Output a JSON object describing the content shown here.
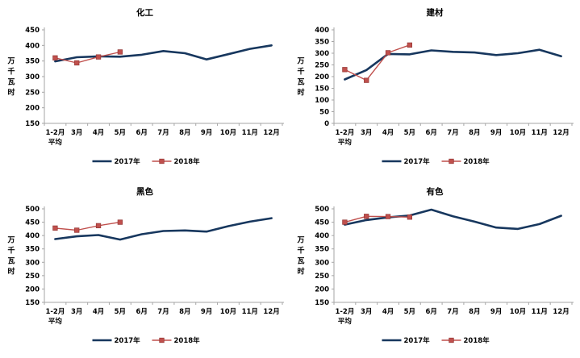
{
  "page": {
    "background": "#FFFFFF"
  },
  "colors": {
    "series_2017": "#17375E",
    "series_2018": "#C0504D",
    "marker_border": "#943634",
    "axis": "#A6A6A6",
    "text": "#000000"
  },
  "legend": {
    "position": "bottom",
    "items": [
      {
        "label": "2017年",
        "color": "#17375E",
        "marker": "line"
      },
      {
        "label": "2018年",
        "color": "#C0504D",
        "marker": "square"
      }
    ]
  },
  "chart_data": [
    {
      "type": "line",
      "title": "化工",
      "ylabel": "万千瓦时",
      "xlabel": "",
      "grid": false,
      "legend_position": "bottom",
      "ylim": [
        150,
        450
      ],
      "ytick_step": 50,
      "categories": [
        "1-2月\n平均",
        "3月",
        "4月",
        "5月",
        "6月",
        "7月",
        "8月",
        "9月",
        "10月",
        "11月",
        "12月"
      ],
      "series": [
        {
          "name": "2017年",
          "color": "#17375E",
          "marker": "none",
          "width": 2.6,
          "values": [
            349,
            362,
            365,
            364,
            370,
            382,
            375,
            355,
            372,
            389,
            400
          ]
        },
        {
          "name": "2018年",
          "color": "#C0504D",
          "marker": "square",
          "width": 1.4,
          "values": [
            360,
            344,
            363,
            379
          ]
        }
      ]
    },
    {
      "type": "line",
      "title": "建材",
      "ylabel": "万千瓦时",
      "xlabel": "",
      "grid": false,
      "legend_position": "bottom",
      "ylim": [
        0,
        400
      ],
      "ytick_step": 50,
      "categories": [
        "1-2月\n平均",
        "3月",
        "4月",
        "5月",
        "6月",
        "7月",
        "8月",
        "9月",
        "10月",
        "11月",
        "12月"
      ],
      "series": [
        {
          "name": "2017年",
          "color": "#17375E",
          "marker": "none",
          "width": 2.6,
          "values": [
            188,
            228,
            297,
            295,
            312,
            306,
            303,
            292,
            300,
            315,
            287
          ]
        },
        {
          "name": "2018年",
          "color": "#C0504D",
          "marker": "square",
          "width": 1.4,
          "values": [
            230,
            184,
            302,
            335
          ]
        }
      ]
    },
    {
      "type": "line",
      "title": "黑色",
      "ylabel": "万千瓦时",
      "xlabel": "",
      "grid": false,
      "legend_position": "bottom",
      "ylim": [
        150,
        500
      ],
      "ytick_step": 50,
      "categories": [
        "1-2月\n平均",
        "3月",
        "4月",
        "5月",
        "6月",
        "7月",
        "8月",
        "9月",
        "10月",
        "11月",
        "12月"
      ],
      "series": [
        {
          "name": "2017年",
          "color": "#17375E",
          "marker": "none",
          "width": 2.6,
          "values": [
            387,
            397,
            402,
            385,
            405,
            417,
            419,
            415,
            435,
            452,
            465
          ]
        },
        {
          "name": "2018年",
          "color": "#C0504D",
          "marker": "square",
          "width": 1.4,
          "values": [
            428,
            420,
            437,
            450
          ]
        }
      ]
    },
    {
      "type": "line",
      "title": "有色",
      "ylabel": "万千瓦时",
      "xlabel": "",
      "grid": false,
      "legend_position": "bottom",
      "ylim": [
        150,
        500
      ],
      "ytick_step": 50,
      "categories": [
        "1-2月\n平均",
        "3月",
        "4月",
        "5月",
        "6月",
        "7月",
        "8月",
        "9月",
        "10月",
        "11月",
        "12月"
      ],
      "series": [
        {
          "name": "2017年",
          "color": "#17375E",
          "marker": "none",
          "width": 2.6,
          "values": [
            441,
            458,
            468,
            475,
            497,
            472,
            452,
            430,
            425,
            443,
            474
          ]
        },
        {
          "name": "2018年",
          "color": "#C0504D",
          "marker": "square",
          "width": 1.4,
          "values": [
            450,
            472,
            471,
            469
          ]
        }
      ]
    }
  ]
}
